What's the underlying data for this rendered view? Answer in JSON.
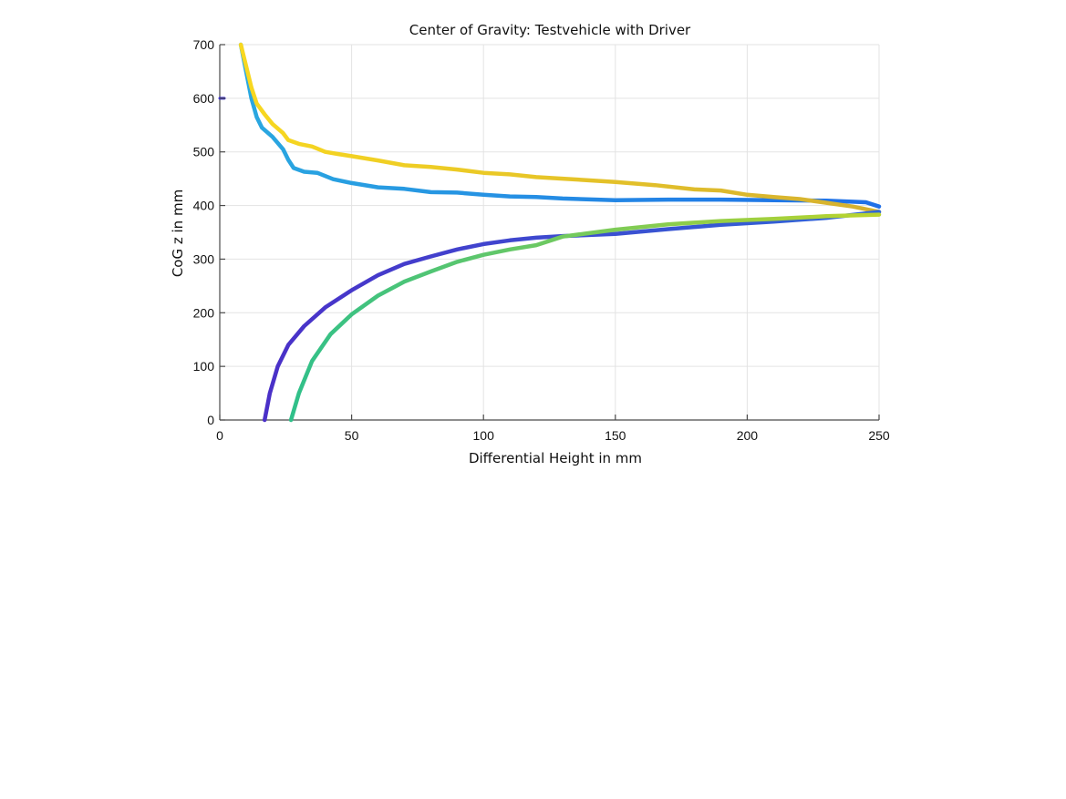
{
  "chart_data": {
    "type": "line",
    "title": "Center of Gravity: Testvehicle with Driver",
    "xlabel": "Differential Height in mm",
    "ylabel": "CoG z in mm",
    "xlim": [
      0,
      250
    ],
    "ylim": [
      0,
      700
    ],
    "xticks": [
      0,
      50,
      100,
      150,
      200,
      250
    ],
    "yticks": [
      0,
      100,
      200,
      300,
      400,
      500,
      600,
      700
    ],
    "grid": true,
    "legend": "none",
    "series": [
      {
        "color_start": "#2aa8e0",
        "color_end": "#1f6fe8",
        "points": [
          [
            8,
            700
          ],
          [
            10,
            650
          ],
          [
            12,
            600
          ],
          [
            14,
            565
          ],
          [
            16,
            545
          ],
          [
            20,
            528
          ],
          [
            24,
            505
          ],
          [
            26,
            485
          ],
          [
            28,
            470
          ],
          [
            32,
            463
          ],
          [
            37,
            461
          ],
          [
            40,
            455
          ],
          [
            43,
            449
          ],
          [
            50,
            442
          ],
          [
            60,
            434
          ],
          [
            70,
            431
          ],
          [
            80,
            425
          ],
          [
            90,
            424
          ],
          [
            100,
            420
          ],
          [
            110,
            417
          ],
          [
            120,
            416
          ],
          [
            130,
            413
          ],
          [
            150,
            410
          ],
          [
            170,
            411
          ],
          [
            190,
            411
          ],
          [
            210,
            410
          ],
          [
            230,
            409
          ],
          [
            245,
            406
          ],
          [
            250,
            398
          ]
        ]
      },
      {
        "color_start": "#f8d820",
        "color_end": "#d4b030",
        "points": [
          [
            8,
            700
          ],
          [
            10,
            660
          ],
          [
            12,
            620
          ],
          [
            14,
            590
          ],
          [
            17,
            570
          ],
          [
            20,
            552
          ],
          [
            24,
            535
          ],
          [
            26,
            522
          ],
          [
            30,
            515
          ],
          [
            35,
            510
          ],
          [
            40,
            500
          ],
          [
            45,
            496
          ],
          [
            50,
            492
          ],
          [
            60,
            484
          ],
          [
            70,
            475
          ],
          [
            80,
            472
          ],
          [
            90,
            467
          ],
          [
            100,
            461
          ],
          [
            110,
            458
          ],
          [
            120,
            453
          ],
          [
            130,
            450
          ],
          [
            150,
            444
          ],
          [
            165,
            438
          ],
          [
            180,
            430
          ],
          [
            190,
            428
          ],
          [
            200,
            420
          ],
          [
            210,
            416
          ],
          [
            220,
            412
          ],
          [
            230,
            405
          ],
          [
            240,
            398
          ],
          [
            250,
            388
          ]
        ]
      },
      {
        "color_start": "#4a30c8",
        "color_end": "#2f67d8",
        "points": [
          [
            17,
            0
          ],
          [
            19,
            50
          ],
          [
            22,
            100
          ],
          [
            26,
            140
          ],
          [
            32,
            175
          ],
          [
            40,
            210
          ],
          [
            50,
            242
          ],
          [
            60,
            270
          ],
          [
            70,
            291
          ],
          [
            80,
            305
          ],
          [
            90,
            318
          ],
          [
            100,
            328
          ],
          [
            110,
            335
          ],
          [
            120,
            340
          ],
          [
            130,
            343
          ],
          [
            150,
            347
          ],
          [
            170,
            356
          ],
          [
            190,
            364
          ],
          [
            210,
            370
          ],
          [
            230,
            377
          ],
          [
            250,
            388
          ]
        ]
      },
      {
        "color_start": "#30c08a",
        "color_end": "#bcd42c",
        "points": [
          [
            27,
            0
          ],
          [
            30,
            50
          ],
          [
            35,
            110
          ],
          [
            42,
            160
          ],
          [
            50,
            197
          ],
          [
            60,
            232
          ],
          [
            70,
            258
          ],
          [
            80,
            277
          ],
          [
            90,
            295
          ],
          [
            100,
            308
          ],
          [
            110,
            318
          ],
          [
            120,
            326
          ],
          [
            130,
            342
          ],
          [
            150,
            355
          ],
          [
            170,
            365
          ],
          [
            190,
            371
          ],
          [
            210,
            375
          ],
          [
            230,
            380
          ],
          [
            250,
            383
          ]
        ]
      }
    ]
  },
  "stray_marker": {
    "x": 0,
    "y": 600,
    "color": "#3a2fc8"
  }
}
